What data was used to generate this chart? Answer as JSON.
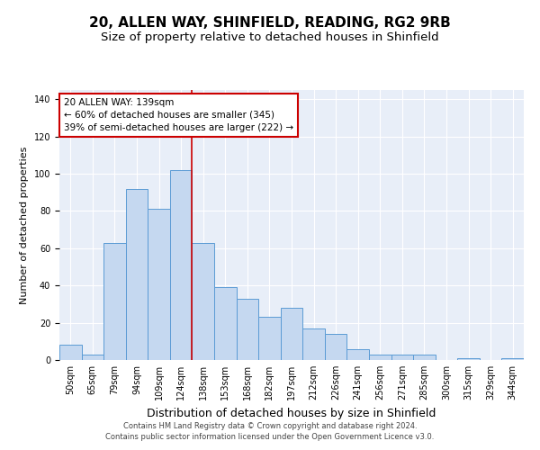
{
  "title": "20, ALLEN WAY, SHINFIELD, READING, RG2 9RB",
  "subtitle": "Size of property relative to detached houses in Shinfield",
  "xlabel": "Distribution of detached houses by size in Shinfield",
  "ylabel": "Number of detached properties",
  "categories": [
    "50sqm",
    "65sqm",
    "79sqm",
    "94sqm",
    "109sqm",
    "124sqm",
    "138sqm",
    "153sqm",
    "168sqm",
    "182sqm",
    "197sqm",
    "212sqm",
    "226sqm",
    "241sqm",
    "256sqm",
    "271sqm",
    "285sqm",
    "300sqm",
    "315sqm",
    "329sqm",
    "344sqm"
  ],
  "values": [
    8,
    3,
    63,
    92,
    81,
    102,
    63,
    39,
    33,
    23,
    28,
    17,
    14,
    6,
    3,
    3,
    3,
    0,
    1,
    0,
    1
  ],
  "bar_color": "#c5d8f0",
  "bar_edgecolor": "#5b9bd5",
  "vline_x": 5.5,
  "vline_color": "#cc0000",
  "ylim": [
    0,
    145
  ],
  "yticks": [
    0,
    20,
    40,
    60,
    80,
    100,
    120,
    140
  ],
  "annotation_text": "20 ALLEN WAY: 139sqm\n← 60% of detached houses are smaller (345)\n39% of semi-detached houses are larger (222) →",
  "annotation_box_color": "#cc0000",
  "background_color": "#e8eef8",
  "footer_line1": "Contains HM Land Registry data © Crown copyright and database right 2024.",
  "footer_line2": "Contains public sector information licensed under the Open Government Licence v3.0.",
  "title_fontsize": 11,
  "subtitle_fontsize": 9.5,
  "xlabel_fontsize": 9,
  "ylabel_fontsize": 8,
  "tick_fontsize": 7,
  "annotation_fontsize": 7.5,
  "footer_fontsize": 6
}
